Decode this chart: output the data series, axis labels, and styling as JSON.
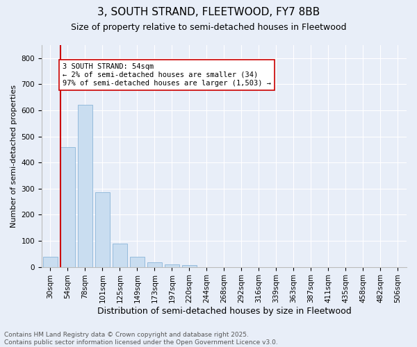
{
  "title1": "3, SOUTH STRAND, FLEETWOOD, FY7 8BB",
  "title2": "Size of property relative to semi-detached houses in Fleetwood",
  "xlabel": "Distribution of semi-detached houses by size in Fleetwood",
  "ylabel": "Number of semi-detached properties",
  "categories": [
    "30sqm",
    "54sqm",
    "78sqm",
    "101sqm",
    "125sqm",
    "149sqm",
    "173sqm",
    "197sqm",
    "220sqm",
    "244sqm",
    "268sqm",
    "292sqm",
    "316sqm",
    "339sqm",
    "363sqm",
    "387sqm",
    "411sqm",
    "435sqm",
    "458sqm",
    "482sqm",
    "506sqm"
  ],
  "values": [
    40,
    460,
    620,
    285,
    90,
    40,
    18,
    10,
    8,
    0,
    0,
    0,
    0,
    0,
    0,
    0,
    0,
    0,
    0,
    0,
    0
  ],
  "bar_color": "#c9ddf0",
  "bar_edge_color": "#8ab4d8",
  "highlight_bar_index": 1,
  "highlight_color": "#cc0000",
  "annotation_text": "3 SOUTH STRAND: 54sqm\n← 2% of semi-detached houses are smaller (34)\n97% of semi-detached houses are larger (1,503) →",
  "annotation_box_color": "#ffffff",
  "annotation_box_edge": "#cc0000",
  "ylim": [
    0,
    850
  ],
  "yticks": [
    0,
    100,
    200,
    300,
    400,
    500,
    600,
    700,
    800
  ],
  "background_color": "#e8eef8",
  "plot_background": "#e8eef8",
  "footer_text": "Contains HM Land Registry data © Crown copyright and database right 2025.\nContains public sector information licensed under the Open Government Licence v3.0.",
  "title1_fontsize": 11,
  "title2_fontsize": 9,
  "xlabel_fontsize": 9,
  "ylabel_fontsize": 8,
  "tick_fontsize": 7.5,
  "annotation_fontsize": 7.5,
  "footer_fontsize": 6.5
}
